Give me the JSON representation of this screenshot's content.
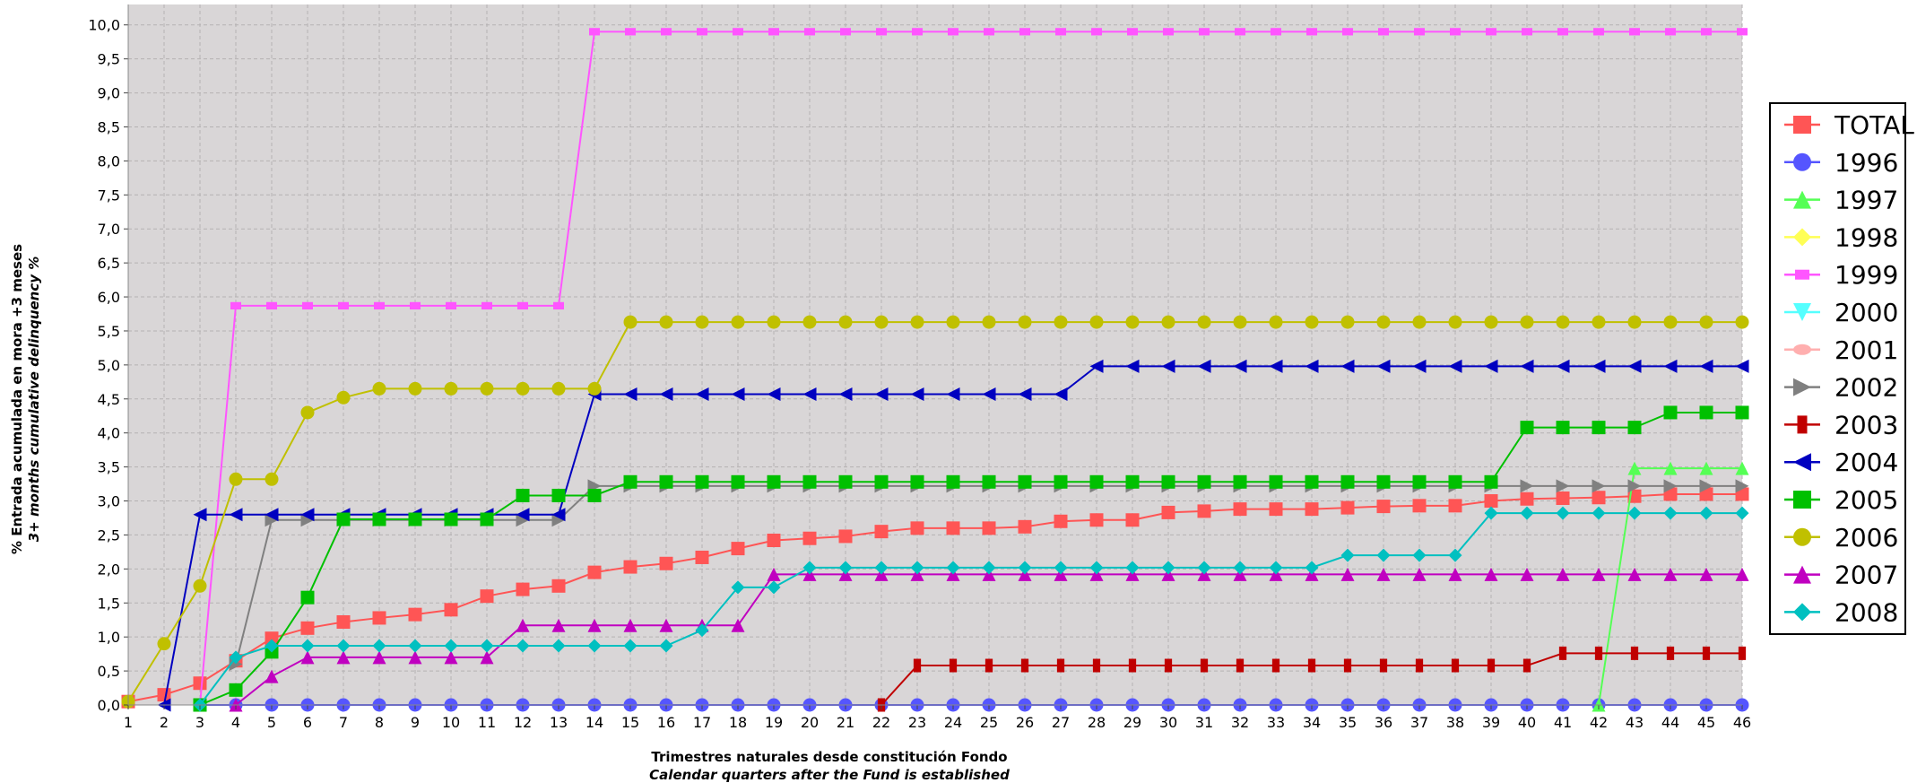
{
  "chart_data": {
    "type": "line",
    "xlabel": [
      "Trimestres naturales desde constitución Fondo",
      "Calendar quarters after the Fund is established"
    ],
    "ylabel": [
      "% Entrada acumulada en mora +3 meses",
      "3+ months cumulative delinquency %"
    ],
    "xlim": [
      1,
      46
    ],
    "ylim": [
      0,
      10.3
    ],
    "x_ticks": [
      "1",
      "2",
      "3",
      "4",
      "5",
      "6",
      "7",
      "8",
      "9",
      "10",
      "11",
      "12",
      "13",
      "14",
      "15",
      "16",
      "17",
      "18",
      "19",
      "20",
      "21",
      "22",
      "23",
      "24",
      "25",
      "26",
      "27",
      "28",
      "29",
      "30",
      "31",
      "32",
      "33",
      "34",
      "35",
      "36",
      "37",
      "38",
      "39",
      "40",
      "41",
      "42",
      "43",
      "44",
      "45",
      "46"
    ],
    "y_ticks": [
      "0,0",
      "0,5",
      "1,0",
      "1,5",
      "2,0",
      "2,5",
      "3,0",
      "3,5",
      "4,0",
      "4,5",
      "5,0",
      "5,5",
      "6,0",
      "6,5",
      "7,0",
      "7,5",
      "8,0",
      "8,5",
      "9,0",
      "9,5",
      "10,0"
    ],
    "grid": true,
    "legend_position": "right",
    "series": [
      {
        "name": "TOTAL",
        "color": "#ff5555",
        "marker": "square",
        "x_start": 1,
        "values": [
          0.05,
          0.15,
          0.32,
          0.65,
          0.98,
          1.13,
          1.22,
          1.28,
          1.33,
          1.4,
          1.6,
          1.7,
          1.75,
          1.95,
          2.03,
          2.08,
          2.17,
          2.3,
          2.42,
          2.45,
          2.48,
          2.55,
          2.6,
          2.6,
          2.6,
          2.62,
          2.7,
          2.72,
          2.72,
          2.83,
          2.85,
          2.88,
          2.88,
          2.88,
          2.9,
          2.92,
          2.93,
          2.93,
          3.0,
          3.03,
          3.04,
          3.05,
          3.07,
          3.1,
          3.1,
          3.1
        ]
      },
      {
        "name": "1996",
        "color": "#5555ff",
        "marker": "circle",
        "x_start": 3,
        "values": [
          0,
          0,
          0,
          0,
          0,
          0,
          0,
          0,
          0,
          0,
          0,
          0,
          0,
          0,
          0,
          0,
          0,
          0,
          0,
          0,
          0,
          0,
          0,
          0,
          0,
          0,
          0,
          0,
          0,
          0,
          0,
          0,
          0,
          0,
          0,
          0,
          0,
          0,
          0,
          0,
          0,
          0,
          0,
          0
        ]
      },
      {
        "name": "1997",
        "color": "#55ff55",
        "marker": "triangle-up",
        "x_start": 42,
        "values": [
          0,
          3.48,
          3.48,
          3.48,
          3.48
        ]
      },
      {
        "name": "1998",
        "color": "#ffff55",
        "marker": "diamond",
        "x_start": 1,
        "values": []
      },
      {
        "name": "1999",
        "color": "#ff55ff",
        "marker": "square-small",
        "x_start": 3,
        "values": [
          0,
          5.87,
          5.87,
          5.87,
          5.87,
          5.87,
          5.87,
          5.87,
          5.87,
          5.87,
          5.87,
          9.9,
          9.9,
          9.9,
          9.9,
          9.9,
          9.9,
          9.9,
          9.9,
          9.9,
          9.9,
          9.9,
          9.9,
          9.9,
          9.9,
          9.9,
          9.9,
          9.9,
          9.9,
          9.9,
          9.9,
          9.9,
          9.9,
          9.9,
          9.9,
          9.9,
          9.9,
          9.9,
          9.9,
          9.9,
          9.9,
          9.9,
          9.9,
          9.9
        ]
      },
      {
        "name": "2000",
        "color": "#55ffff",
        "marker": "triangle-down",
        "x_start": 1,
        "values": []
      },
      {
        "name": "2001",
        "color": "#ffafaf",
        "marker": "ellipse",
        "x_start": 1,
        "values": []
      },
      {
        "name": "2002",
        "color": "#808080",
        "marker": "triangle-right",
        "x_start": 4,
        "values": [
          0.6,
          2.72,
          2.72,
          2.72,
          2.72,
          2.72,
          2.72,
          2.72,
          2.72,
          2.72,
          3.22,
          3.22,
          3.22,
          3.22,
          3.22,
          3.22,
          3.22,
          3.22,
          3.22,
          3.22,
          3.22,
          3.22,
          3.22,
          3.22,
          3.22,
          3.22,
          3.22,
          3.22,
          3.22,
          3.22,
          3.22,
          3.22,
          3.22,
          3.22,
          3.22,
          3.22,
          3.22,
          3.22,
          3.22,
          3.22,
          3.22,
          3.22,
          3.22
        ]
      },
      {
        "name": "2003",
        "color": "#c00000",
        "marker": "rect-tall",
        "x_start": 22,
        "values": [
          0,
          0.58,
          0.58,
          0.58,
          0.58,
          0.58,
          0.58,
          0.58,
          0.58,
          0.58,
          0.58,
          0.58,
          0.58,
          0.58,
          0.58,
          0.58,
          0.58,
          0.58,
          0.58,
          0.76,
          0.76,
          0.76,
          0.76,
          0.76,
          0.76
        ]
      },
      {
        "name": "2004",
        "color": "#0000c0",
        "marker": "triangle-left",
        "x_start": 2,
        "values": [
          0,
          2.8,
          2.8,
          2.8,
          2.8,
          2.8,
          2.8,
          2.8,
          2.8,
          2.8,
          2.8,
          2.8,
          4.57,
          4.57,
          4.57,
          4.57,
          4.57,
          4.57,
          4.57,
          4.57,
          4.57,
          4.57,
          4.57,
          4.57,
          4.57,
          4.57,
          4.98,
          4.98,
          4.98,
          4.98,
          4.98,
          4.98,
          4.98,
          4.98,
          4.98,
          4.98,
          4.98,
          4.98,
          4.98,
          4.98,
          4.98,
          4.98,
          4.98,
          4.98,
          4.98
        ]
      },
      {
        "name": "2005",
        "color": "#00c000",
        "marker": "square",
        "x_start": 3,
        "values": [
          0,
          0.22,
          0.78,
          1.58,
          2.73,
          2.73,
          2.73,
          2.73,
          2.73,
          3.08,
          3.08,
          3.08,
          3.28,
          3.28,
          3.28,
          3.28,
          3.28,
          3.28,
          3.28,
          3.28,
          3.28,
          3.28,
          3.28,
          3.28,
          3.28,
          3.28,
          3.28,
          3.28,
          3.28,
          3.28,
          3.28,
          3.28,
          3.28,
          3.28,
          3.28,
          3.28,
          3.28,
          4.08,
          4.08,
          4.08,
          4.08,
          4.3,
          4.3,
          4.3
        ]
      },
      {
        "name": "2006",
        "color": "#c0c000",
        "marker": "circle",
        "x_start": 1,
        "values": [
          0.05,
          0.9,
          1.75,
          3.32,
          3.32,
          4.3,
          4.52,
          4.65,
          4.65,
          4.65,
          4.65,
          4.65,
          4.65,
          4.65,
          5.63,
          5.63,
          5.63,
          5.63,
          5.63,
          5.63,
          5.63,
          5.63,
          5.63,
          5.63,
          5.63,
          5.63,
          5.63,
          5.63,
          5.63,
          5.63,
          5.63,
          5.63,
          5.63,
          5.63,
          5.63,
          5.63,
          5.63,
          5.63,
          5.63,
          5.63,
          5.63,
          5.63,
          5.63,
          5.63,
          5.63,
          5.63
        ]
      },
      {
        "name": "2007",
        "color": "#c000c0",
        "marker": "triangle-up",
        "x_start": 4,
        "values": [
          0,
          0.42,
          0.7,
          0.7,
          0.7,
          0.7,
          0.7,
          0.7,
          1.17,
          1.17,
          1.17,
          1.17,
          1.17,
          1.17,
          1.17,
          1.92,
          1.92,
          1.92,
          1.92,
          1.92,
          1.92,
          1.92,
          1.92,
          1.92,
          1.92,
          1.92,
          1.92,
          1.92,
          1.92,
          1.92,
          1.92,
          1.92,
          1.92,
          1.92,
          1.92,
          1.92,
          1.92,
          1.92,
          1.92,
          1.92,
          1.92,
          1.92,
          1.92
        ]
      },
      {
        "name": "2008",
        "color": "#00c0c0",
        "marker": "diamond",
        "x_start": 3,
        "values": [
          0,
          0.7,
          0.87,
          0.87,
          0.87,
          0.87,
          0.87,
          0.87,
          0.87,
          0.87,
          0.87,
          0.87,
          0.87,
          0.87,
          1.1,
          1.73,
          1.73,
          2.02,
          2.02,
          2.02,
          2.02,
          2.02,
          2.02,
          2.02,
          2.02,
          2.02,
          2.02,
          2.02,
          2.02,
          2.02,
          2.02,
          2.02,
          2.2,
          2.2,
          2.2,
          2.2,
          2.82,
          2.82,
          2.82,
          2.82,
          2.82,
          2.82,
          2.82,
          2.82
        ]
      }
    ]
  }
}
